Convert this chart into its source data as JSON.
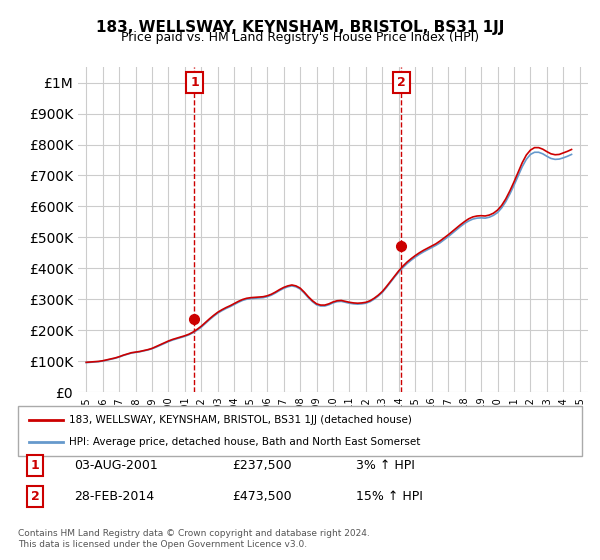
{
  "title": "183, WELLSWAY, KEYNSHAM, BRISTOL, BS31 1JJ",
  "subtitle": "Price paid vs. HM Land Registry's House Price Index (HPI)",
  "legend_line1": "183, WELLSWAY, KEYNSHAM, BRISTOL, BS31 1JJ (detached house)",
  "legend_line2": "HPI: Average price, detached house, Bath and North East Somerset",
  "sale1_label": "1",
  "sale1_date": "03-AUG-2001",
  "sale1_price": "£237,500",
  "sale1_hpi": "3% ↑ HPI",
  "sale1_year": 2001.58,
  "sale1_value": 237500,
  "sale2_label": "2",
  "sale2_date": "28-FEB-2014",
  "sale2_price": "£473,500",
  "sale2_hpi": "15% ↑ HPI",
  "sale2_year": 2014.16,
  "sale2_value": 473500,
  "footer": "Contains HM Land Registry data © Crown copyright and database right 2024.\nThis data is licensed under the Open Government Licence v3.0.",
  "red_color": "#cc0000",
  "blue_color": "#6699cc",
  "dashed_color": "#cc0000",
  "background_color": "#ffffff",
  "grid_color": "#cccccc",
  "ylim": [
    0,
    1050000
  ],
  "xlim": [
    1994.5,
    2025.5
  ],
  "hpi_data_x": [
    1995,
    1995.25,
    1995.5,
    1995.75,
    1996,
    1996.25,
    1996.5,
    1996.75,
    1997,
    1997.25,
    1997.5,
    1997.75,
    1998,
    1998.25,
    1998.5,
    1998.75,
    1999,
    1999.25,
    1999.5,
    1999.75,
    2000,
    2000.25,
    2000.5,
    2000.75,
    2001,
    2001.25,
    2001.5,
    2001.75,
    2002,
    2002.25,
    2002.5,
    2002.75,
    2003,
    2003.25,
    2003.5,
    2003.75,
    2004,
    2004.25,
    2004.5,
    2004.75,
    2005,
    2005.25,
    2005.5,
    2005.75,
    2006,
    2006.25,
    2006.5,
    2006.75,
    2007,
    2007.25,
    2007.5,
    2007.75,
    2008,
    2008.25,
    2008.5,
    2008.75,
    2009,
    2009.25,
    2009.5,
    2009.75,
    2010,
    2010.25,
    2010.5,
    2010.75,
    2011,
    2011.25,
    2011.5,
    2011.75,
    2012,
    2012.25,
    2012.5,
    2012.75,
    2013,
    2013.25,
    2013.5,
    2013.75,
    2014,
    2014.25,
    2014.5,
    2014.75,
    2015,
    2015.25,
    2015.5,
    2015.75,
    2016,
    2016.25,
    2016.5,
    2016.75,
    2017,
    2017.25,
    2017.5,
    2017.75,
    2018,
    2018.25,
    2018.5,
    2018.75,
    2019,
    2019.25,
    2019.5,
    2019.75,
    2020,
    2020.25,
    2020.5,
    2020.75,
    2021,
    2021.25,
    2021.5,
    2021.75,
    2022,
    2022.25,
    2022.5,
    2022.75,
    2023,
    2023.25,
    2023.5,
    2023.75,
    2024,
    2024.25,
    2024.5
  ],
  "hpi_data_y": [
    95000,
    96000,
    97000,
    98000,
    100000,
    103000,
    106000,
    109000,
    113000,
    118000,
    122000,
    126000,
    128000,
    130000,
    133000,
    136000,
    140000,
    145000,
    151000,
    157000,
    163000,
    168000,
    172000,
    176000,
    180000,
    185000,
    192000,
    200000,
    210000,
    222000,
    234000,
    245000,
    255000,
    263000,
    270000,
    276000,
    283000,
    290000,
    296000,
    300000,
    302000,
    303000,
    304000,
    305000,
    308000,
    313000,
    320000,
    328000,
    335000,
    340000,
    343000,
    340000,
    333000,
    320000,
    305000,
    292000,
    282000,
    278000,
    278000,
    282000,
    288000,
    292000,
    293000,
    290000,
    287000,
    285000,
    284000,
    285000,
    287000,
    292000,
    300000,
    310000,
    322000,
    338000,
    355000,
    372000,
    388000,
    402000,
    415000,
    426000,
    436000,
    445000,
    453000,
    460000,
    467000,
    474000,
    482000,
    492000,
    502000,
    513000,
    524000,
    535000,
    545000,
    553000,
    559000,
    562000,
    563000,
    562000,
    565000,
    571000,
    580000,
    595000,
    615000,
    640000,
    668000,
    698000,
    728000,
    752000,
    768000,
    775000,
    775000,
    770000,
    762000,
    755000,
    752000,
    753000,
    757000,
    762000,
    768000
  ],
  "red_data_x": [
    1995,
    1995.25,
    1995.5,
    1995.75,
    1996,
    1996.25,
    1996.5,
    1996.75,
    1997,
    1997.25,
    1997.5,
    1997.75,
    1998,
    1998.25,
    1998.5,
    1998.75,
    1999,
    1999.25,
    1999.5,
    1999.75,
    2000,
    2000.25,
    2000.5,
    2000.75,
    2001,
    2001.25,
    2001.5,
    2001.75,
    2002,
    2002.25,
    2002.5,
    2002.75,
    2003,
    2003.25,
    2003.5,
    2003.75,
    2004,
    2004.25,
    2004.5,
    2004.75,
    2005,
    2005.25,
    2005.5,
    2005.75,
    2006,
    2006.25,
    2006.5,
    2006.75,
    2007,
    2007.25,
    2007.5,
    2007.75,
    2008,
    2008.25,
    2008.5,
    2008.75,
    2009,
    2009.25,
    2009.5,
    2009.75,
    2010,
    2010.25,
    2010.5,
    2010.75,
    2011,
    2011.25,
    2011.5,
    2011.75,
    2012,
    2012.25,
    2012.5,
    2012.75,
    2013,
    2013.25,
    2013.5,
    2013.75,
    2014,
    2014.25,
    2014.5,
    2014.75,
    2015,
    2015.25,
    2015.5,
    2015.75,
    2016,
    2016.25,
    2016.5,
    2016.75,
    2017,
    2017.25,
    2017.5,
    2017.75,
    2018,
    2018.25,
    2018.5,
    2018.75,
    2019,
    2019.25,
    2019.5,
    2019.75,
    2020,
    2020.25,
    2020.5,
    2020.75,
    2021,
    2021.25,
    2021.5,
    2021.75,
    2022,
    2022.25,
    2022.5,
    2022.75,
    2023,
    2023.25,
    2023.5,
    2023.75,
    2024,
    2024.25,
    2024.5
  ],
  "red_data_y": [
    96000,
    97000,
    98000,
    99000,
    101000,
    104000,
    107000,
    110000,
    114000,
    119000,
    123000,
    127000,
    129000,
    131000,
    134000,
    137000,
    141000,
    147000,
    153000,
    159000,
    165000,
    170000,
    174000,
    178000,
    182000,
    187000,
    194000,
    203000,
    213000,
    225000,
    237000,
    248000,
    258000,
    266000,
    273000,
    279000,
    286000,
    293000,
    299000,
    303000,
    305000,
    306000,
    307000,
    308000,
    311000,
    316000,
    323000,
    331000,
    338000,
    343000,
    346000,
    343000,
    336000,
    323000,
    308000,
    295000,
    285000,
    281000,
    281000,
    285000,
    291000,
    295000,
    296000,
    293000,
    290000,
    288000,
    287000,
    288000,
    290000,
    295000,
    303000,
    313000,
    325000,
    341000,
    358000,
    375000,
    392000,
    407000,
    420000,
    431000,
    441000,
    450000,
    458000,
    465000,
    472000,
    479000,
    488000,
    498000,
    508000,
    519000,
    530000,
    541000,
    551000,
    560000,
    566000,
    569000,
    570000,
    569000,
    572000,
    578000,
    588000,
    603000,
    624000,
    650000,
    679000,
    710000,
    741000,
    766000,
    782000,
    790000,
    790000,
    785000,
    777000,
    770000,
    767000,
    768000,
    773000,
    778000,
    784000
  ]
}
